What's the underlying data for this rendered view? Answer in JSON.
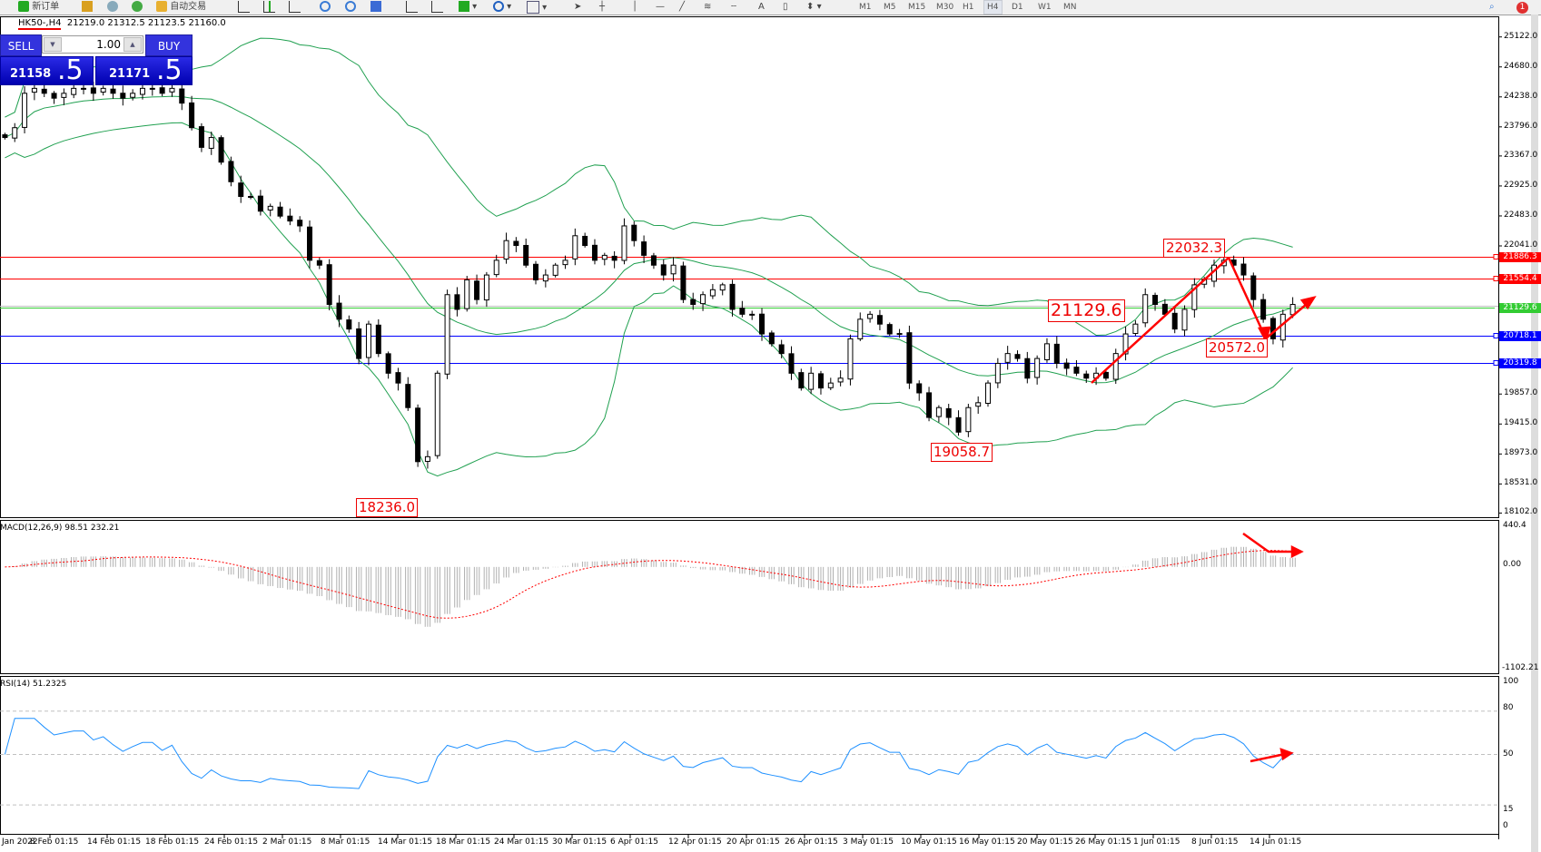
{
  "toolbar": {
    "new_order": "新订单",
    "auto_trading": "自动交易",
    "timeframes": [
      "M1",
      "M5",
      "M15",
      "M30",
      "H1",
      "H4",
      "D1",
      "W1",
      "MN"
    ],
    "active_timeframe": "H4",
    "notification_count": "1"
  },
  "chart_header": {
    "symbol": "HK50-,H4",
    "ohlc": "21219.0 21312.5 21123.5 21160.0"
  },
  "trade_panel": {
    "sell_label": "SELL",
    "buy_label": "BUY",
    "lot": "1.00",
    "sell_price_main": "21158",
    "sell_price_big": ".5",
    "buy_price_main": "21171",
    "buy_price_big": ".5"
  },
  "price_axis": [
    "25122.0",
    "24680.0",
    "24238.0",
    "23796.0",
    "23367.0",
    "22925.0",
    "22483.0",
    "22041.0",
    "19857.0",
    "19415.0",
    "18973.0",
    "18531.0",
    "18102.0"
  ],
  "price_lines": [
    {
      "price": 21886.3,
      "label": "21886.3",
      "color": "#ff0000"
    },
    {
      "price": 21554.4,
      "label": "21554.4",
      "color": "#ff0000"
    },
    {
      "price": 21129.6,
      "label": "21129.6",
      "color": "#33cc33"
    },
    {
      "price": 20718.1,
      "label": "20718.1",
      "color": "#0000ff"
    },
    {
      "price": 20319.8,
      "label": "20319.8",
      "color": "#0000ff"
    }
  ],
  "annotations": [
    "22032.3",
    "21129.6",
    "20572.0",
    "19058.7",
    "18236.0"
  ],
  "macd": {
    "label": "MACD(12,26,9) 98.51 232.21",
    "axis": [
      "440.4",
      "0.00",
      "-1102.21"
    ]
  },
  "rsi": {
    "label": "RSI(14) 51.2325",
    "axis": [
      "100",
      "80",
      "50",
      "15",
      "0"
    ]
  },
  "date_axis": [
    "Jan 2022",
    "8 Feb 01:15",
    "14 Feb 01:15",
    "18 Feb 01:15",
    "24 Feb 01:15",
    "2 Mar 01:15",
    "8 Mar 01:15",
    "14 Mar 01:15",
    "18 Mar 01:15",
    "24 Mar 01:15",
    "30 Mar 01:15",
    "6 Apr 01:15",
    "12 Apr 01:15",
    "20 Apr 01:15",
    "26 Apr 01:15",
    "3 May 01:15",
    "10 May 01:15",
    "16 May 01:15",
    "20 May 01:15",
    "26 May 01:15",
    "1 Jun 01:15",
    "8 Jun 01:15",
    "14 Jun 01:15"
  ],
  "chart_data": {
    "type": "candlestick",
    "symbol": "HK50-",
    "timeframe": "H4",
    "ylim": [
      18102,
      25340
    ],
    "closes": [
      23639,
      23784,
      24291,
      24364,
      24291,
      24219,
      24291,
      24364,
      24364,
      24291,
      24364,
      24291,
      24219,
      24291,
      24364,
      24364,
      24291,
      24364,
      24146,
      23784,
      23494,
      23639,
      23276,
      22987,
      22770,
      22770,
      22553,
      22625,
      22480,
      22408,
      22336,
      21829,
      21757,
      21178,
      20960,
      20815,
      20381,
      20888,
      20454,
      20164,
      20019,
      19657,
      18860,
      18933,
      20164,
      21322,
      21105,
      21540,
      21250,
      21612,
      21829,
      22119,
      22047,
      21757,
      21540,
      21612,
      21757,
      21829,
      22191,
      22047,
      21829,
      21902,
      21829,
      22336,
      22119,
      21902,
      21757,
      21612,
      21757,
      21250,
      21178,
      21322,
      21395,
      21467,
      21105,
      21033,
      21033,
      20743,
      20598,
      20454,
      20164,
      19946,
      20164,
      19946,
      20019,
      20091,
      20671,
      20960,
      21033,
      20888,
      20743,
      20743,
      20019,
      19874,
      19512,
      19657,
      19512,
      19295,
      19657,
      19729,
      20019,
      20309,
      20454,
      20381,
      20091,
      20381,
      20598,
      20309,
      20236,
      20164,
      20091,
      20164,
      20091,
      20454,
      20743,
      20888,
      21322,
      21178,
      21033,
      20815,
      21105,
      21467,
      21540,
      21757,
      21829,
      21757,
      21612,
      21250,
      20960,
      20671,
      21033,
      21178
    ],
    "indicators": [
      "Bollinger Bands",
      "MACD(12,26,9)",
      "RSI(14)"
    ],
    "colors": {
      "bands": "#20a050",
      "macd_signal": "#ff0000",
      "macd_hist": "#b0b0b0",
      "rsi": "#1e90ff",
      "arrows": "#ff0000"
    }
  }
}
